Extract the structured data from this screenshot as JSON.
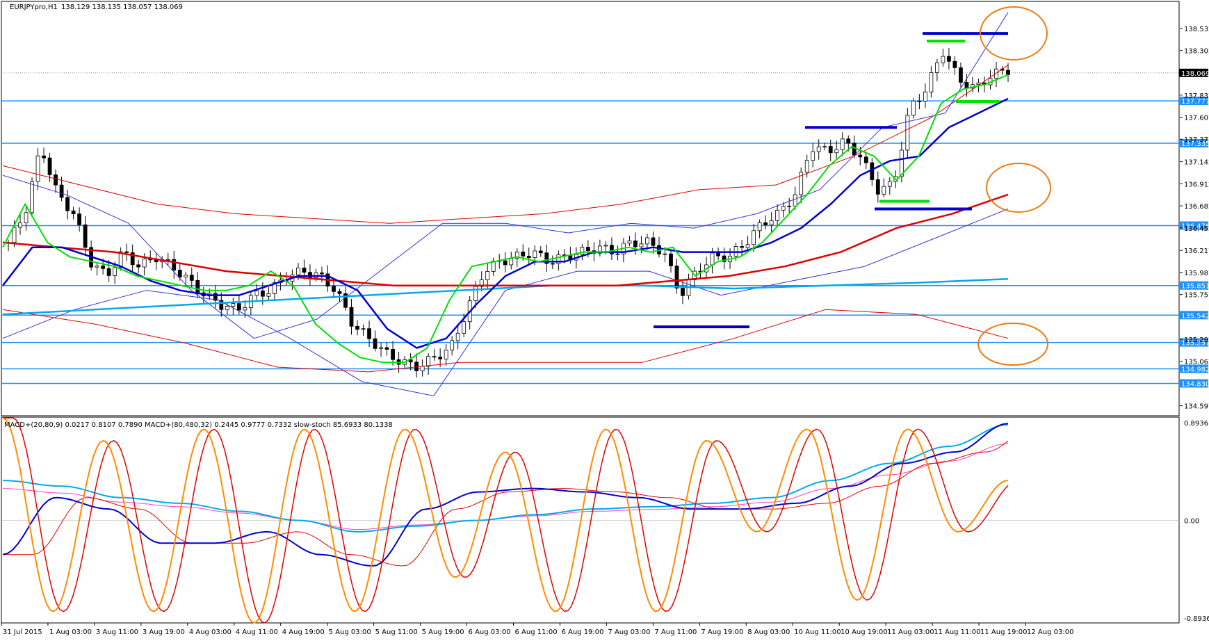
{
  "main_header": {
    "symbol": "EURJPYpro,H1",
    "ohlc": "138.129 138.135 138.057 138.069"
  },
  "sub_header": "MACD+(20,80,9) 0.0217 0.8107 0.7890  MACD+(80,480,32) 0.2445 0.9777 0.7332  slow-stoch 85.6933 80.1338",
  "colors": {
    "background": "#ffffff",
    "bull": "#ffffff",
    "bear": "#000000",
    "hline": "#1e90ff",
    "label_bg": "#1e90ff",
    "ma_green": "#00e000",
    "ma_blue": "#0000cc",
    "ma_red": "#e00000",
    "ma_cyan": "#00aaee",
    "bb": "#3333dd",
    "env": "#e00000",
    "orange": "#f07a10",
    "stoch": "#ff8c00",
    "magenta": "#ff40c0"
  },
  "chart_data": [
    {
      "type": "candlestick",
      "title": "EURJPYpro,H1",
      "ylim": [
        134.5,
        138.8
      ],
      "y_ticks": [
        "138.532",
        "138.302",
        "137.837",
        "137.607",
        "137.377",
        "137.142",
        "136.912",
        "136.682",
        "136.452",
        "136.217",
        "135.987",
        "135.757",
        "135.292",
        "135.062",
        "134.597"
      ],
      "price_now": "138.069",
      "horizontal_levels": [
        "137.777",
        "137.335",
        "136.476",
        "135.851",
        "135.542",
        "135.257",
        "134.982",
        "134.830"
      ],
      "x_labels": [
        "31 Jul 2015",
        "1 Aug 03:00",
        "3 Aug 11:00",
        "3 Aug 19:00",
        "4 Aug 03:00",
        "4 Aug 11:00",
        "4 Aug 19:00",
        "5 Aug 03:00",
        "5 Aug 11:00",
        "5 Aug 19:00",
        "6 Aug 03:00",
        "6 Aug 11:00",
        "6 Aug 19:00",
        "7 Aug 03:00",
        "7 Aug 11:00",
        "7 Aug 19:00",
        "8 Aug 03:00",
        "10 Aug 11:00",
        "10 Aug 19:00",
        "11 Aug 03:00",
        "11 Aug 11:00",
        "11 Aug 19:00",
        "12 Aug 03:00"
      ],
      "candles_close_path": [
        136.3,
        136.6,
        137.3,
        136.8,
        136.6,
        136.1,
        135.95,
        136.2,
        136.05,
        136.15,
        136.05,
        135.9,
        135.75,
        135.65,
        135.6,
        135.75,
        135.8,
        135.95,
        136.0,
        135.95,
        135.8,
        135.45,
        135.3,
        135.15,
        135.05,
        135.0,
        135.1,
        135.2,
        135.6,
        136.0,
        136.1,
        136.15,
        136.2,
        136.1,
        136.15,
        136.2,
        136.25,
        136.2,
        136.3,
        136.3,
        136.2,
        135.75,
        136.0,
        136.15,
        136.15,
        136.3,
        136.5,
        136.6,
        136.8,
        137.3,
        137.25,
        137.35,
        137.2,
        136.85,
        136.9,
        137.7,
        137.9,
        138.3,
        138.0,
        137.9,
        138.05,
        138.1
      ],
      "ma_green": [
        136.25,
        136.7,
        136.3,
        136.15,
        136.1,
        136.05,
        135.95,
        135.9,
        135.85,
        135.8,
        135.8,
        135.85,
        136.0,
        135.85,
        135.45,
        135.25,
        135.1,
        135.05,
        135.05,
        135.2,
        135.7,
        136.05,
        136.1,
        136.15,
        136.1,
        136.15,
        136.2,
        136.2,
        136.25,
        136.2,
        136.25,
        135.95,
        136.1,
        136.15,
        136.3,
        136.55,
        136.8,
        137.1,
        137.3,
        137.2,
        136.95,
        137.2,
        137.75,
        137.9,
        137.95,
        138.05
      ],
      "ma_blue": [
        135.85,
        136.25,
        136.25,
        136.15,
        136.05,
        135.9,
        135.8,
        135.75,
        135.75,
        135.85,
        135.95,
        135.95,
        135.8,
        135.4,
        135.2,
        135.3,
        135.65,
        135.95,
        136.1,
        136.1,
        136.2,
        136.2,
        136.25,
        136.2,
        136.2,
        136.2,
        136.3,
        136.45,
        136.7,
        137.0,
        137.15,
        137.2,
        137.5,
        137.65,
        137.8
      ],
      "ma_red": [
        136.3,
        136.25,
        136.2,
        136.1,
        136.0,
        135.95,
        135.9,
        135.85,
        135.85,
        135.85,
        135.85,
        135.85,
        135.9,
        135.95,
        136.05,
        136.2,
        136.45,
        136.6,
        136.8
      ],
      "ma_cyan": [
        135.55,
        135.6,
        135.65,
        135.7,
        135.75,
        135.8,
        135.85,
        135.85,
        135.82,
        135.85,
        135.88,
        135.92
      ],
      "bb_upper": [
        137.0,
        136.8,
        136.5,
        135.8,
        135.3,
        135.5,
        136.0,
        136.5,
        136.5,
        136.4,
        136.5,
        136.45,
        136.6,
        136.85,
        137.5,
        137.65,
        138.7
      ],
      "bb_lower": [
        135.3,
        135.6,
        135.8,
        135.7,
        135.3,
        134.85,
        134.7,
        135.8,
        136.0,
        136.0,
        135.75,
        135.9,
        136.05,
        136.35,
        136.65
      ],
      "env_upper": [
        137.1,
        136.9,
        136.7,
        136.6,
        136.55,
        136.5,
        136.55,
        136.6,
        136.7,
        136.85,
        136.9,
        137.2,
        137.6,
        138.15
      ],
      "env_lower": [
        135.6,
        135.45,
        135.25,
        135.0,
        134.95,
        135.05,
        135.05,
        135.05,
        135.3,
        135.6,
        135.55,
        135.3
      ]
    },
    {
      "type": "line",
      "title": "MACD+ / slow-stoch",
      "ylim": [
        -0.8936,
        0.8936
      ],
      "y_ticks": [
        "0.8936",
        "0.00",
        "-0.8936"
      ],
      "series": [
        {
          "name": "MACD+(20,80,9)",
          "values": [
            -0.3,
            0.2,
            0.1,
            -0.2,
            -0.2,
            -0.1,
            -0.3,
            -0.4,
            0.1,
            0.25,
            0.28,
            0.25,
            0.2,
            0.1,
            0.1,
            0.15,
            0.3,
            0.5,
            0.6,
            0.85
          ]
        },
        {
          "name": "MACD+(80,480,32)",
          "values": [
            0.35,
            0.3,
            0.2,
            0.15,
            0.08,
            0.0,
            -0.1,
            -0.05,
            0.0,
            0.05,
            0.1,
            0.12,
            0.15,
            0.2,
            0.35,
            0.5,
            0.65,
            0.84
          ]
        },
        {
          "name": "slow-stoch",
          "values": [
            0.9,
            -0.8,
            0.7,
            -0.8,
            0.8,
            -0.9,
            0.8,
            -0.8,
            0.8,
            -0.5,
            0.6,
            -0.8,
            0.8,
            -0.8,
            0.7,
            -0.1,
            0.8,
            -0.7,
            0.8,
            -0.1,
            0.35
          ]
        }
      ]
    }
  ]
}
